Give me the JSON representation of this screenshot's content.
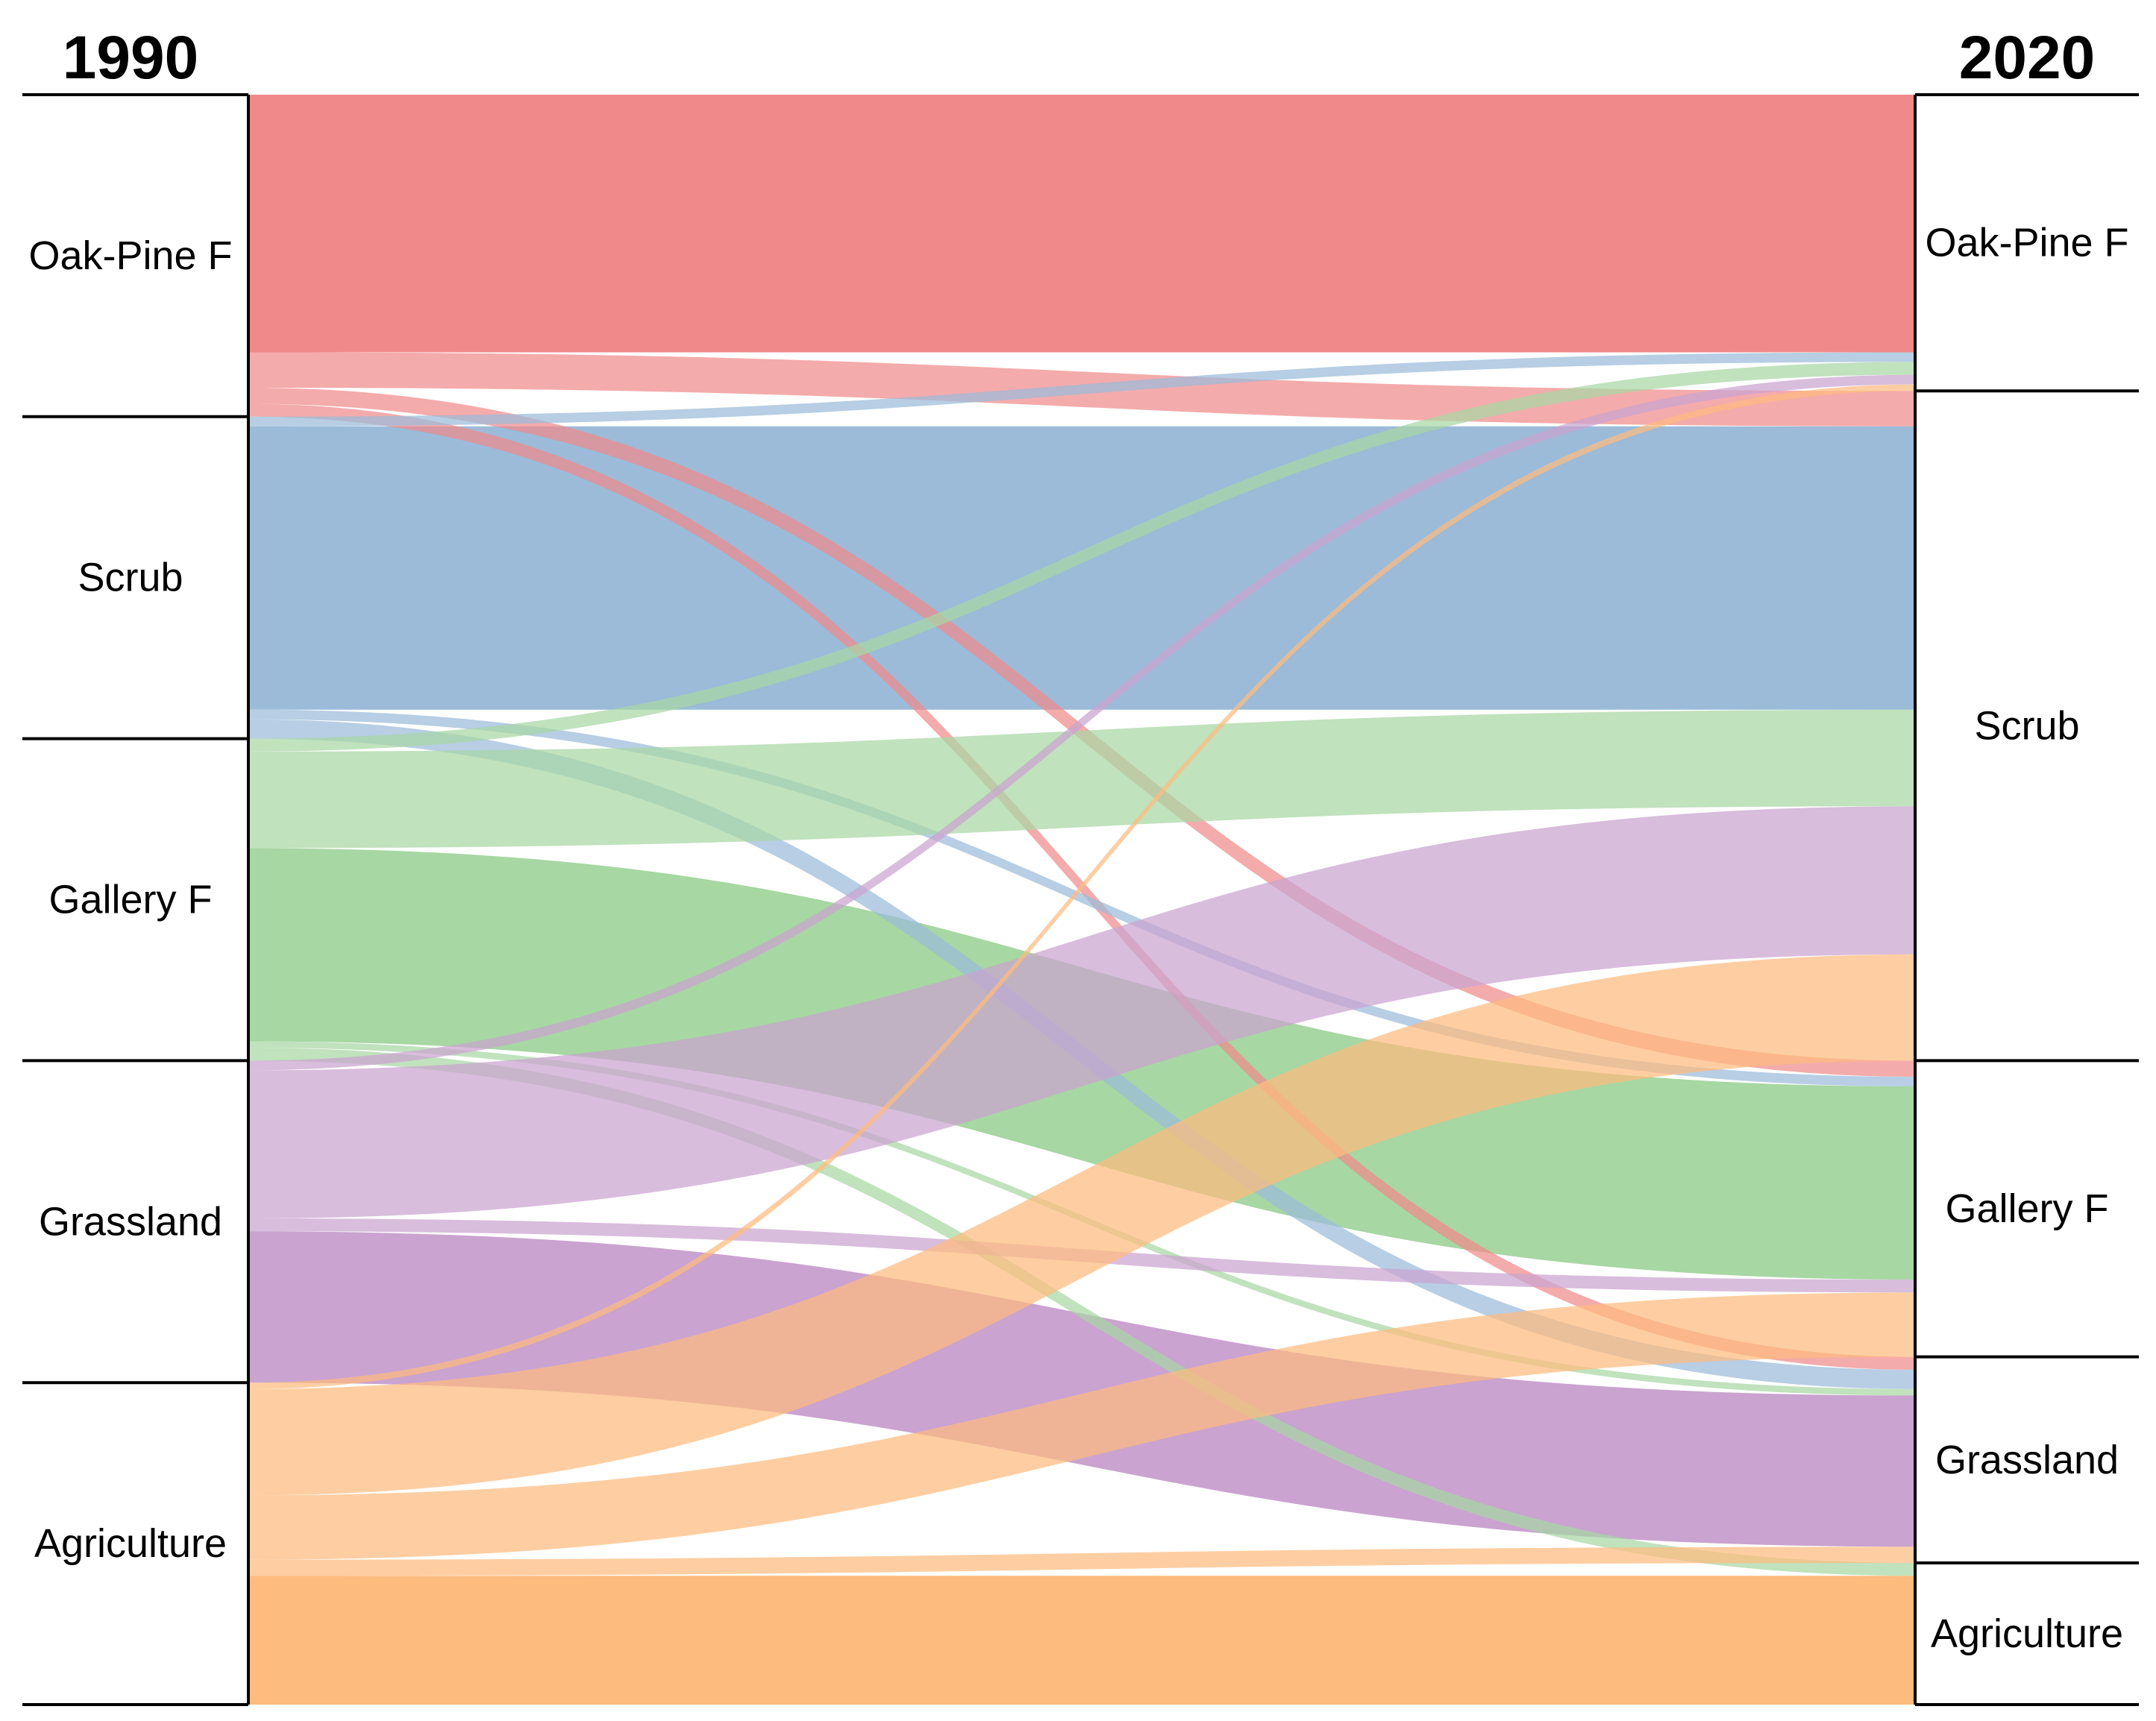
{
  "chart_data": {
    "type": "sankey",
    "left_year": "1990",
    "right_year": "2020",
    "left_nodes": [
      {
        "name": "Oak-Pine F",
        "color": "#f08a8a"
      },
      {
        "name": "Scrub",
        "color": "#9bbbd9"
      },
      {
        "name": "Gallery F",
        "color": "#a7d7a3"
      },
      {
        "name": "Grassland",
        "color": "#caa3d0"
      },
      {
        "name": "Agriculture",
        "color": "#fdbb7e"
      }
    ],
    "right_nodes": [
      {
        "name": "Oak-Pine F"
      },
      {
        "name": "Scrub"
      },
      {
        "name": "Gallery F"
      },
      {
        "name": "Grassland"
      },
      {
        "name": "Agriculture"
      }
    ],
    "flows": [
      {
        "from": "Oak-Pine F",
        "to": "Oak-Pine F",
        "value": 0.8
      },
      {
        "from": "Oak-Pine F",
        "to": "Scrub",
        "value": 0.11
      },
      {
        "from": "Oak-Pine F",
        "to": "Gallery F",
        "value": 0.05
      },
      {
        "from": "Oak-Pine F",
        "to": "Grassland",
        "value": 0.04
      },
      {
        "from": "Scrub",
        "to": "Oak-Pine F",
        "value": 0.03
      },
      {
        "from": "Scrub",
        "to": "Scrub",
        "value": 0.88
      },
      {
        "from": "Scrub",
        "to": "Gallery F",
        "value": 0.03
      },
      {
        "from": "Scrub",
        "to": "Grassland",
        "value": 0.06
      },
      {
        "from": "Gallery F",
        "to": "Oak-Pine F",
        "value": 0.04
      },
      {
        "from": "Gallery F",
        "to": "Scrub",
        "value": 0.3
      },
      {
        "from": "Gallery F",
        "to": "Gallery F",
        "value": 0.6
      },
      {
        "from": "Gallery F",
        "to": "Grassland",
        "value": 0.02
      },
      {
        "from": "Gallery F",
        "to": "Agriculture",
        "value": 0.04
      },
      {
        "from": "Grassland",
        "to": "Oak-Pine F",
        "value": 0.03
      },
      {
        "from": "Grassland",
        "to": "Scrub",
        "value": 0.46
      },
      {
        "from": "Grassland",
        "to": "Gallery F",
        "value": 0.04
      },
      {
        "from": "Grassland",
        "to": "Grassland",
        "value": 0.47
      },
      {
        "from": "Agriculture",
        "to": "Oak-Pine F",
        "value": 0.02
      },
      {
        "from": "Agriculture",
        "to": "Scrub",
        "value": 0.33
      },
      {
        "from": "Agriculture",
        "to": "Gallery F",
        "value": 0.2
      },
      {
        "from": "Agriculture",
        "to": "Grassland",
        "value": 0.05
      },
      {
        "from": "Agriculture",
        "to": "Agriculture",
        "value": 0.4
      }
    ]
  }
}
